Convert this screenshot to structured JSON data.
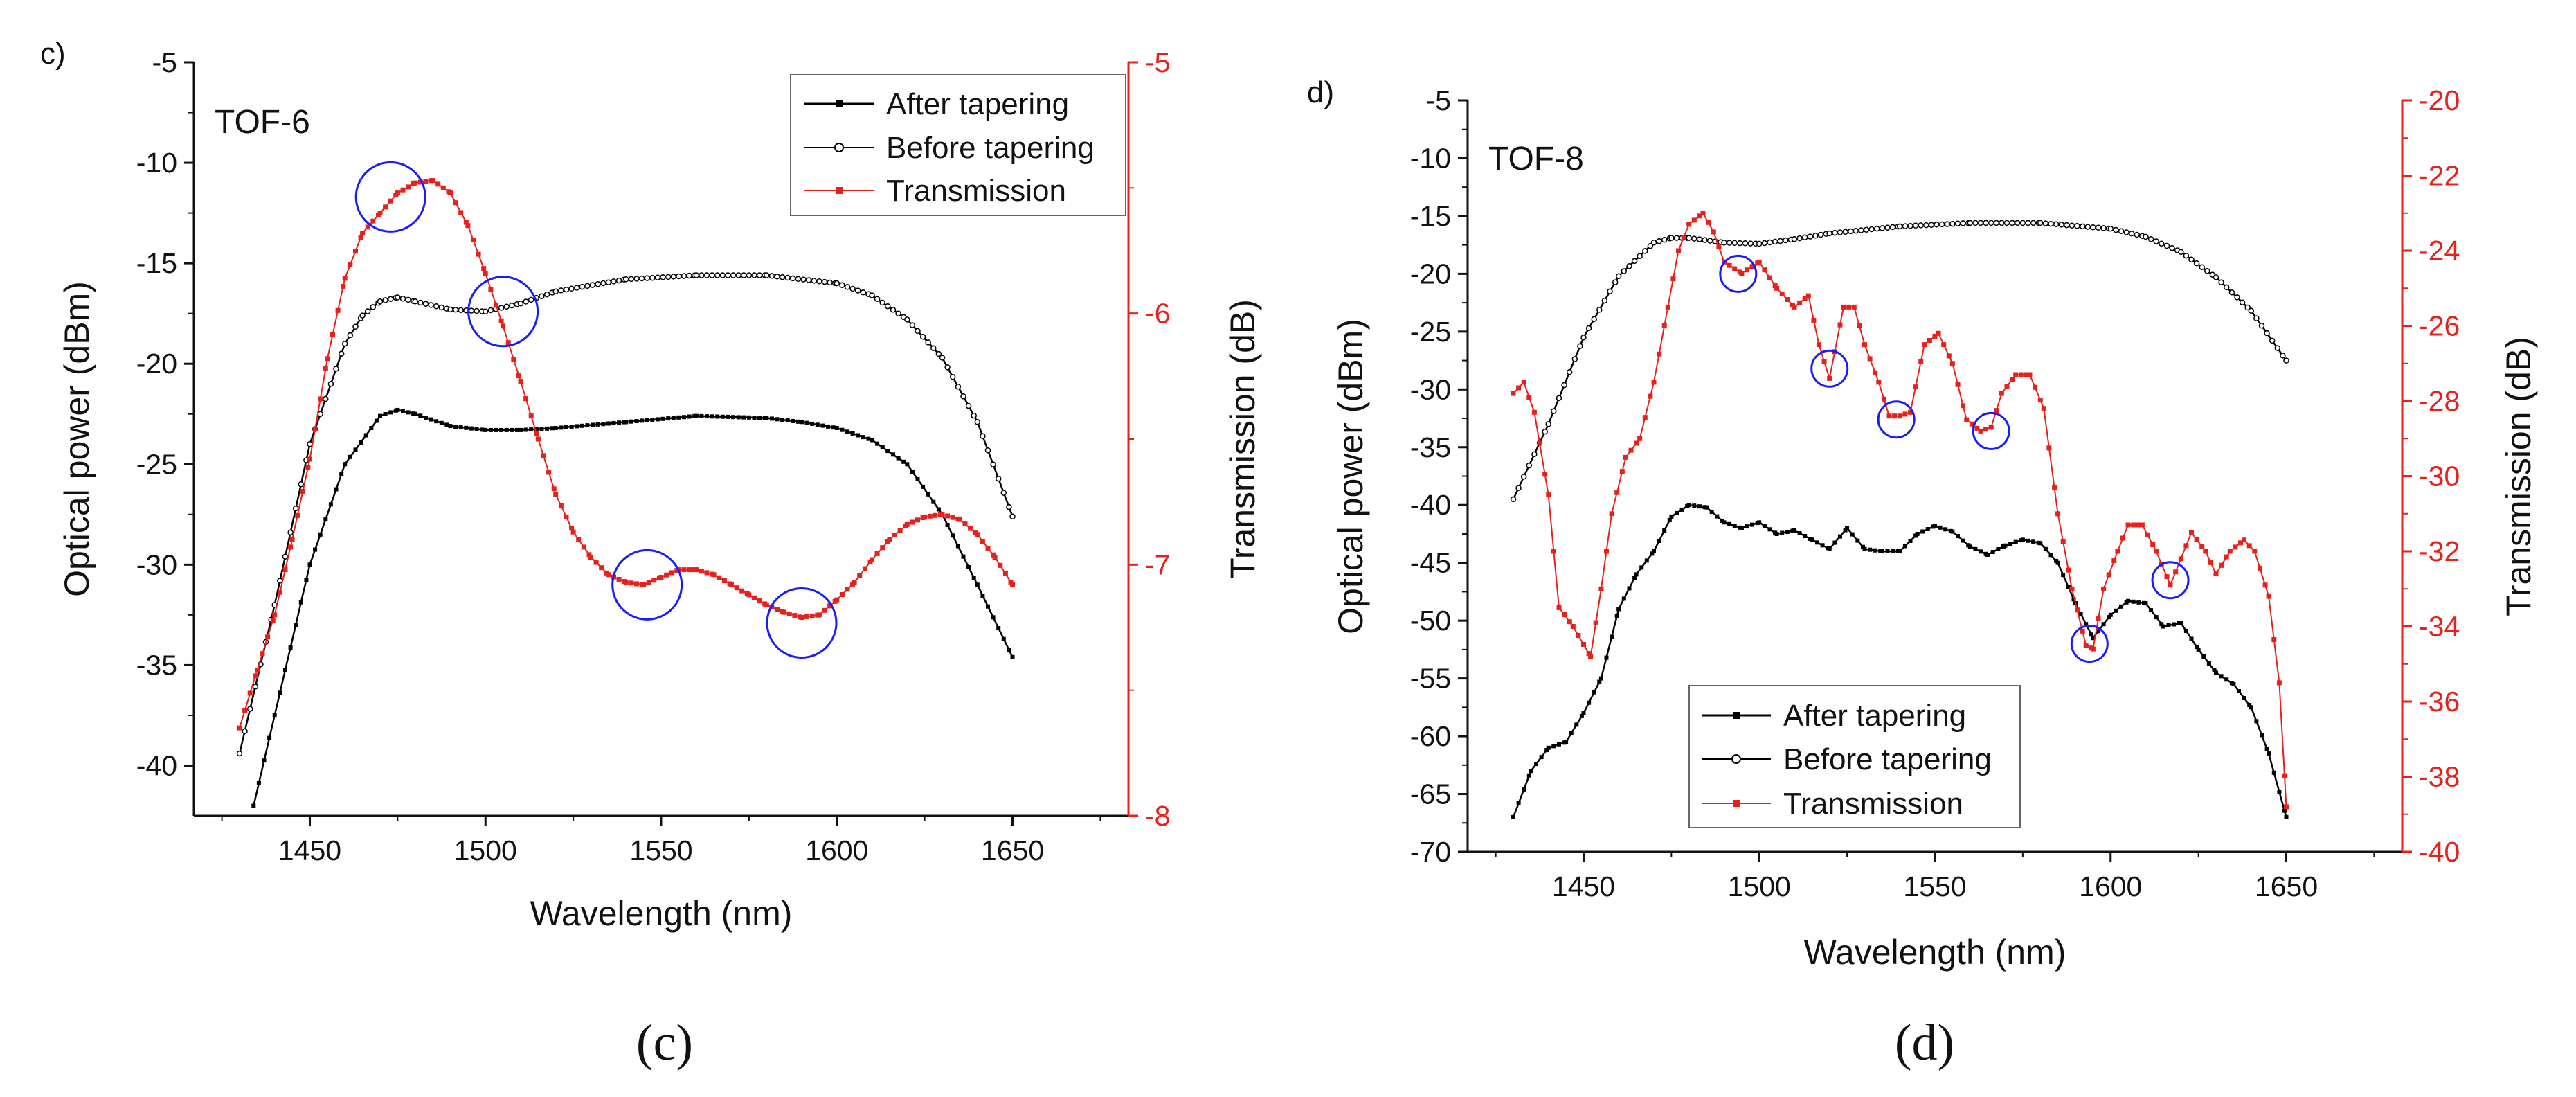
{
  "chart_data": [
    {
      "type": "line",
      "panel_label": "c)",
      "sample_label": "TOF-6",
      "caption": "(c)",
      "xlabel": "Wavelength (nm)",
      "ylabel": "Optical power (dBm)",
      "ylabel_right": "Transmission (dB)",
      "xlim": [
        1417,
        1683
      ],
      "ylim": [
        -42.5,
        -5
      ],
      "ylim_right": [
        -8,
        -5
      ],
      "x_ticks": [
        1450,
        1500,
        1550,
        1600,
        1650
      ],
      "y_ticks": [
        -40,
        -35,
        -30,
        -25,
        -20,
        -15,
        -10,
        -5
      ],
      "y_ticks_right": [
        -8,
        -7,
        -6,
        -5
      ],
      "legend": [
        "After tapering",
        "Before tapering",
        "Transmission"
      ],
      "series": [
        {
          "name": "After tapering",
          "axis": "left",
          "color": "#000000",
          "x": [
            1434,
            1440,
            1450,
            1460,
            1470,
            1475,
            1480,
            1490,
            1500,
            1510,
            1520,
            1540,
            1560,
            1580,
            1590,
            1600,
            1610,
            1620,
            1630,
            1640,
            1650
          ],
          "y": [
            -42,
            -37.5,
            -30,
            -25,
            -22.6,
            -22.3,
            -22.5,
            -23.1,
            -23.3,
            -23.3,
            -23.2,
            -22.9,
            -22.6,
            -22.7,
            -22.9,
            -23.2,
            -23.8,
            -25,
            -27.5,
            -31,
            -34.6
          ]
        },
        {
          "name": "Before tapering",
          "axis": "left",
          "color": "#000000",
          "x": [
            1430,
            1440,
            1450,
            1460,
            1465,
            1470,
            1475,
            1480,
            1490,
            1500,
            1510,
            1520,
            1540,
            1560,
            1580,
            1600,
            1610,
            1620,
            1630,
            1640,
            1650
          ],
          "y": [
            -39.4,
            -32,
            -24,
            -19,
            -17.6,
            -16.9,
            -16.7,
            -16.9,
            -17.3,
            -17.4,
            -17,
            -16.4,
            -15.8,
            -15.6,
            -15.6,
            -16,
            -16.6,
            -17.8,
            -19.7,
            -22.9,
            -27.6
          ]
        },
        {
          "name": "Transmission",
          "axis": "right",
          "color": "#e8201b",
          "x": [
            1430,
            1435,
            1440,
            1445,
            1450,
            1455,
            1460,
            1465,
            1470,
            1475,
            1480,
            1485,
            1490,
            1495,
            1500,
            1505,
            1510,
            1515,
            1520,
            1525,
            1530,
            1535,
            1540,
            1545,
            1550,
            1555,
            1560,
            1565,
            1570,
            1575,
            1580,
            1585,
            1590,
            1595,
            1600,
            1605,
            1610,
            1615,
            1620,
            1625,
            1630,
            1635,
            1640,
            1645,
            1650
          ],
          "y": [
            -7.65,
            -7.42,
            -7.2,
            -6.9,
            -6.58,
            -6.18,
            -5.86,
            -5.68,
            -5.6,
            -5.52,
            -5.48,
            -5.47,
            -5.52,
            -5.65,
            -5.84,
            -6.05,
            -6.27,
            -6.5,
            -6.72,
            -6.87,
            -6.97,
            -7.04,
            -7.07,
            -7.08,
            -7.05,
            -7.02,
            -7.02,
            -7.04,
            -7.08,
            -7.12,
            -7.16,
            -7.19,
            -7.21,
            -7.2,
            -7.14,
            -7.07,
            -6.98,
            -6.9,
            -6.84,
            -6.81,
            -6.8,
            -6.82,
            -6.88,
            -6.97,
            -7.08
          ]
        }
      ],
      "annotations": [
        {
          "shape": "circle",
          "x": 1473,
          "y": -11.7
        },
        {
          "shape": "circle",
          "x": 1505,
          "y": -17.4
        },
        {
          "shape": "circle",
          "x": 1546,
          "y": -31.0
        },
        {
          "shape": "circle",
          "x": 1590,
          "y": -32.9
        }
      ]
    },
    {
      "type": "line",
      "panel_label": "d)",
      "sample_label": "TOF-8",
      "caption": "(d)",
      "xlabel": "Wavelength (nm)",
      "ylabel": "Optical power (dBm)",
      "ylabel_right": "Transmission (dB)",
      "xlim": [
        1417,
        1683
      ],
      "ylim": [
        -70,
        -5
      ],
      "ylim_right": [
        -40,
        -20
      ],
      "x_ticks": [
        1450,
        1500,
        1550,
        1600,
        1650
      ],
      "y_ticks": [
        -70,
        -65,
        -60,
        -55,
        -50,
        -45,
        -40,
        -35,
        -30,
        -25,
        -20,
        -15,
        -10,
        -5
      ],
      "y_ticks_right": [
        -40,
        -38,
        -36,
        -34,
        -32,
        -30,
        -28,
        -26,
        -24,
        -22,
        -20
      ],
      "legend": [
        "After tapering",
        "Before tapering",
        "Transmission"
      ],
      "series": [
        {
          "name": "After tapering",
          "axis": "left",
          "color": "#000000",
          "x": [
            1430,
            1435,
            1440,
            1445,
            1450,
            1455,
            1460,
            1465,
            1470,
            1475,
            1480,
            1485,
            1490,
            1495,
            1500,
            1505,
            1510,
            1515,
            1520,
            1525,
            1530,
            1535,
            1540,
            1545,
            1550,
            1555,
            1560,
            1565,
            1570,
            1575,
            1580,
            1585,
            1590,
            1595,
            1600,
            1605,
            1610,
            1615,
            1620,
            1625,
            1630,
            1635,
            1640,
            1645,
            1650
          ],
          "y": [
            -67,
            -63,
            -61,
            -60.5,
            -58,
            -55,
            -49,
            -46,
            -44,
            -41,
            -40,
            -40.2,
            -41.5,
            -42,
            -41.5,
            -42.5,
            -42.2,
            -43,
            -43.8,
            -42,
            -43.8,
            -44,
            -44,
            -42.5,
            -41.8,
            -42.3,
            -43.6,
            -44.3,
            -43.5,
            -43,
            -43.3,
            -45,
            -48.5,
            -51.5,
            -49.5,
            -48.3,
            -48.5,
            -50.5,
            -50.2,
            -52.5,
            -54.5,
            -55.5,
            -57.5,
            -61.5,
            -67
          ]
        },
        {
          "name": "Before tapering",
          "axis": "left",
          "color": "#000000",
          "x": [
            1430,
            1440,
            1450,
            1460,
            1470,
            1475,
            1480,
            1490,
            1500,
            1510,
            1520,
            1540,
            1560,
            1580,
            1600,
            1610,
            1620,
            1630,
            1640,
            1650
          ],
          "y": [
            -39.5,
            -33,
            -25.5,
            -20.2,
            -17.3,
            -16.9,
            -16.9,
            -17.3,
            -17.4,
            -17,
            -16.5,
            -15.9,
            -15.6,
            -15.6,
            -16.1,
            -16.8,
            -18.1,
            -20.3,
            -23.2,
            -27.5
          ]
        },
        {
          "name": "Transmission",
          "axis": "right",
          "color": "#e8201b",
          "x": [
            1430,
            1433,
            1436,
            1440,
            1443,
            1447,
            1452,
            1455,
            1458,
            1462,
            1466,
            1470,
            1474,
            1477,
            1480,
            1484,
            1487,
            1490,
            1495,
            1500,
            1505,
            1510,
            1514,
            1517,
            1520,
            1524,
            1527,
            1530,
            1534,
            1537,
            1540,
            1543,
            1547,
            1551,
            1555,
            1559,
            1563,
            1566,
            1569,
            1573,
            1577,
            1581,
            1585,
            1589,
            1593,
            1595,
            1598,
            1602,
            1605,
            1609,
            1613,
            1617,
            1620,
            1623,
            1627,
            1630,
            1634,
            1638,
            1641,
            1645,
            1648,
            1650
          ],
          "y": [
            -27.8,
            -27.5,
            -28.3,
            -30.5,
            -33.5,
            -34,
            -34.8,
            -33,
            -31,
            -29.5,
            -29,
            -27.5,
            -25.5,
            -24,
            -23.3,
            -23,
            -23.5,
            -24.3,
            -24.6,
            -24.3,
            -25,
            -25.5,
            -25.2,
            -26.5,
            -27.4,
            -25.5,
            -25.5,
            -26.5,
            -27.5,
            -28.4,
            -28.4,
            -28.3,
            -26.5,
            -26.2,
            -27,
            -28.5,
            -28.8,
            -28.7,
            -27.8,
            -27.3,
            -27.3,
            -28.2,
            -31,
            -33,
            -34.5,
            -34.6,
            -33,
            -32,
            -31.3,
            -31.3,
            -32,
            -32.9,
            -32.2,
            -31.5,
            -32,
            -32.6,
            -32,
            -31.7,
            -32,
            -33.2,
            -35.5,
            -38.8
          ]
        }
      ],
      "annotations": [
        {
          "shape": "circle",
          "x": 1494,
          "y": -20
        },
        {
          "shape": "circle",
          "x": 1520,
          "y": -28.2
        },
        {
          "shape": "circle",
          "x": 1539,
          "y": -32.6
        },
        {
          "shape": "circle",
          "x": 1566,
          "y": -33.6
        },
        {
          "shape": "circle",
          "x": 1594,
          "y": -52
        },
        {
          "shape": "circle",
          "x": 1617,
          "y": -46.5
        }
      ]
    }
  ]
}
